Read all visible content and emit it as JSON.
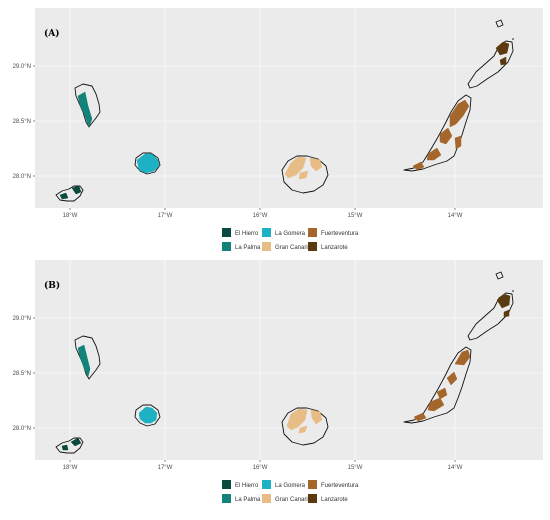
{
  "panels": [
    {
      "label": "(A)",
      "variant": "A"
    },
    {
      "label": "(B)",
      "variant": "B"
    }
  ],
  "axes": {
    "x_ticks": [
      "18°W",
      "17°W",
      "16°W",
      "15°W",
      "14°W"
    ],
    "y_ticks": [
      "29.0°N",
      "28.5°N",
      "28.0°N"
    ]
  },
  "legend": {
    "items": [
      {
        "label": "El Hierro",
        "color": "#0b4a3f"
      },
      {
        "label": "La Gomera",
        "color": "#1db1c3"
      },
      {
        "label": "Fuerteventura",
        "color": "#a4662b"
      },
      {
        "label": "La Palma",
        "color": "#11837a"
      },
      {
        "label": "Gran Canaria",
        "color": "#e8bd85"
      },
      {
        "label": "Lanzarote",
        "color": "#5c3a10"
      }
    ]
  },
  "islands": [
    {
      "name": "El Hierro",
      "color": "#0b4a3f"
    },
    {
      "name": "La Palma",
      "color": "#11837a"
    },
    {
      "name": "La Gomera",
      "color": "#1db1c3"
    },
    {
      "name": "Gran Canaria",
      "color": "#e8bd85"
    },
    {
      "name": "Fuerteventura",
      "color": "#a4662b"
    },
    {
      "name": "Lanzarote",
      "color": "#5c3a10"
    }
  ]
}
